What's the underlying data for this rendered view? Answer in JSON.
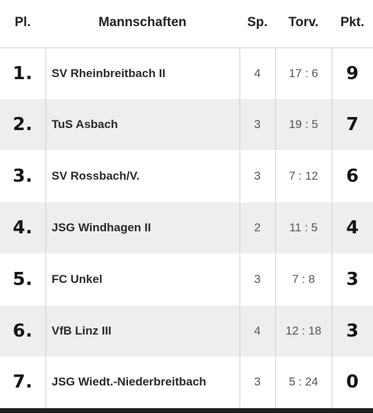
{
  "header": {
    "place": "Pl.",
    "team": "Mannschaften",
    "games": "Sp.",
    "goals": "Torv.",
    "points": "Pkt."
  },
  "rows": [
    {
      "place": "1.",
      "team": "SV Rheinbreitbach II",
      "games": "4",
      "goals": "17 : 6",
      "points": "9"
    },
    {
      "place": "2.",
      "team": "TuS Asbach",
      "games": "3",
      "goals": "19 : 5",
      "points": "7"
    },
    {
      "place": "3.",
      "team": "SV Rossbach/V.",
      "games": "3",
      "goals": "7 : 12",
      "points": "6"
    },
    {
      "place": "4.",
      "team": "JSG Windhagen II",
      "games": "2",
      "goals": "11 : 5",
      "points": "4"
    },
    {
      "place": "5.",
      "team": "FC Unkel",
      "games": "3",
      "goals": "7 : 8",
      "points": "3"
    },
    {
      "place": "6.",
      "team": "VfB Linz III",
      "games": "4",
      "goals": "12 : 18",
      "points": "3"
    },
    {
      "place": "7.",
      "team": "JSG Wiedt.-Niederbreitbach",
      "games": "3",
      "goals": "5 : 24",
      "points": "0"
    }
  ],
  "colors": {
    "row_alt": "#eeeeee",
    "row_plain": "#ffffff",
    "grid": "#cfcfcf",
    "footer": "#1f1f1f"
  }
}
